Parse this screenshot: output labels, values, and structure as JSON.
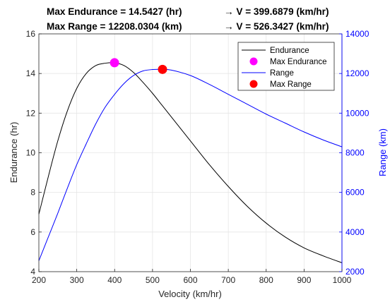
{
  "title": {
    "line1_left": "Max Endurance = 14.5427 (hr)",
    "line1_right": "→ V = 399.6879 (km/hr)",
    "line2_left": "Max Range = 12208.0304 (km)",
    "line2_right": "→ V = 526.3427 (km/hr)"
  },
  "chart_data": {
    "type": "line",
    "xlabel": "Velocity (km/hr)",
    "ylabel_left": "Endurance (hr)",
    "ylabel_right": "Range (km)",
    "xlim": [
      200,
      1000
    ],
    "ylim_left": [
      4,
      16
    ],
    "ylim_right": [
      2000,
      14000
    ],
    "x_ticks": [
      200,
      300,
      400,
      500,
      600,
      700,
      800,
      900,
      1000
    ],
    "y_left_ticks": [
      4,
      6,
      8,
      10,
      12,
      14,
      16
    ],
    "y_right_ticks": [
      2000,
      4000,
      6000,
      8000,
      10000,
      12000,
      14000
    ],
    "grid": true,
    "legend_position": "top-right",
    "series": [
      {
        "name": "Endurance",
        "axis": "left",
        "color": "#000000",
        "x": [
          200,
          225,
          250,
          275,
          300,
          325,
          350,
          375,
          400,
          425,
          450,
          475,
          500,
          525,
          550,
          600,
          650,
          700,
          750,
          800,
          850,
          900,
          950,
          1000
        ],
        "y": [
          6.9,
          8.8,
          10.6,
          12.1,
          13.25,
          14.0,
          14.4,
          14.52,
          14.54,
          14.4,
          14.05,
          13.55,
          13.0,
          12.4,
          11.8,
          10.6,
          9.4,
          8.3,
          7.3,
          6.45,
          5.75,
          5.2,
          4.8,
          4.45
        ]
      },
      {
        "name": "Max Endurance",
        "axis": "left",
        "marker": "circle",
        "color": "#ff00ff",
        "x": [
          399.6879
        ],
        "y": [
          14.5427
        ]
      },
      {
        "name": "Range",
        "axis": "right",
        "color": "#0000ff",
        "x": [
          200,
          225,
          250,
          275,
          300,
          325,
          350,
          375,
          400,
          425,
          450,
          475,
          500,
          525,
          550,
          600,
          650,
          700,
          750,
          800,
          850,
          900,
          950,
          1000
        ],
        "y": [
          2550,
          3750,
          4950,
          6200,
          7400,
          8450,
          9450,
          10300,
          10950,
          11500,
          11900,
          12130,
          12200,
          12208,
          12170,
          11900,
          11450,
          10950,
          10450,
          9950,
          9500,
          9050,
          8650,
          8300
        ]
      },
      {
        "name": "Max Range",
        "axis": "right",
        "marker": "circle",
        "color": "#ff0000",
        "x": [
          526.3427
        ],
        "y": [
          12208.0304
        ]
      }
    ]
  },
  "colors": {
    "endurance": "#000000",
    "max_endurance": "#ff00ff",
    "range": "#0000ff",
    "max_range": "#ff0000",
    "left_axis": "#262626",
    "right_axis": "#0000ff",
    "grid": "#e6e6e6"
  }
}
